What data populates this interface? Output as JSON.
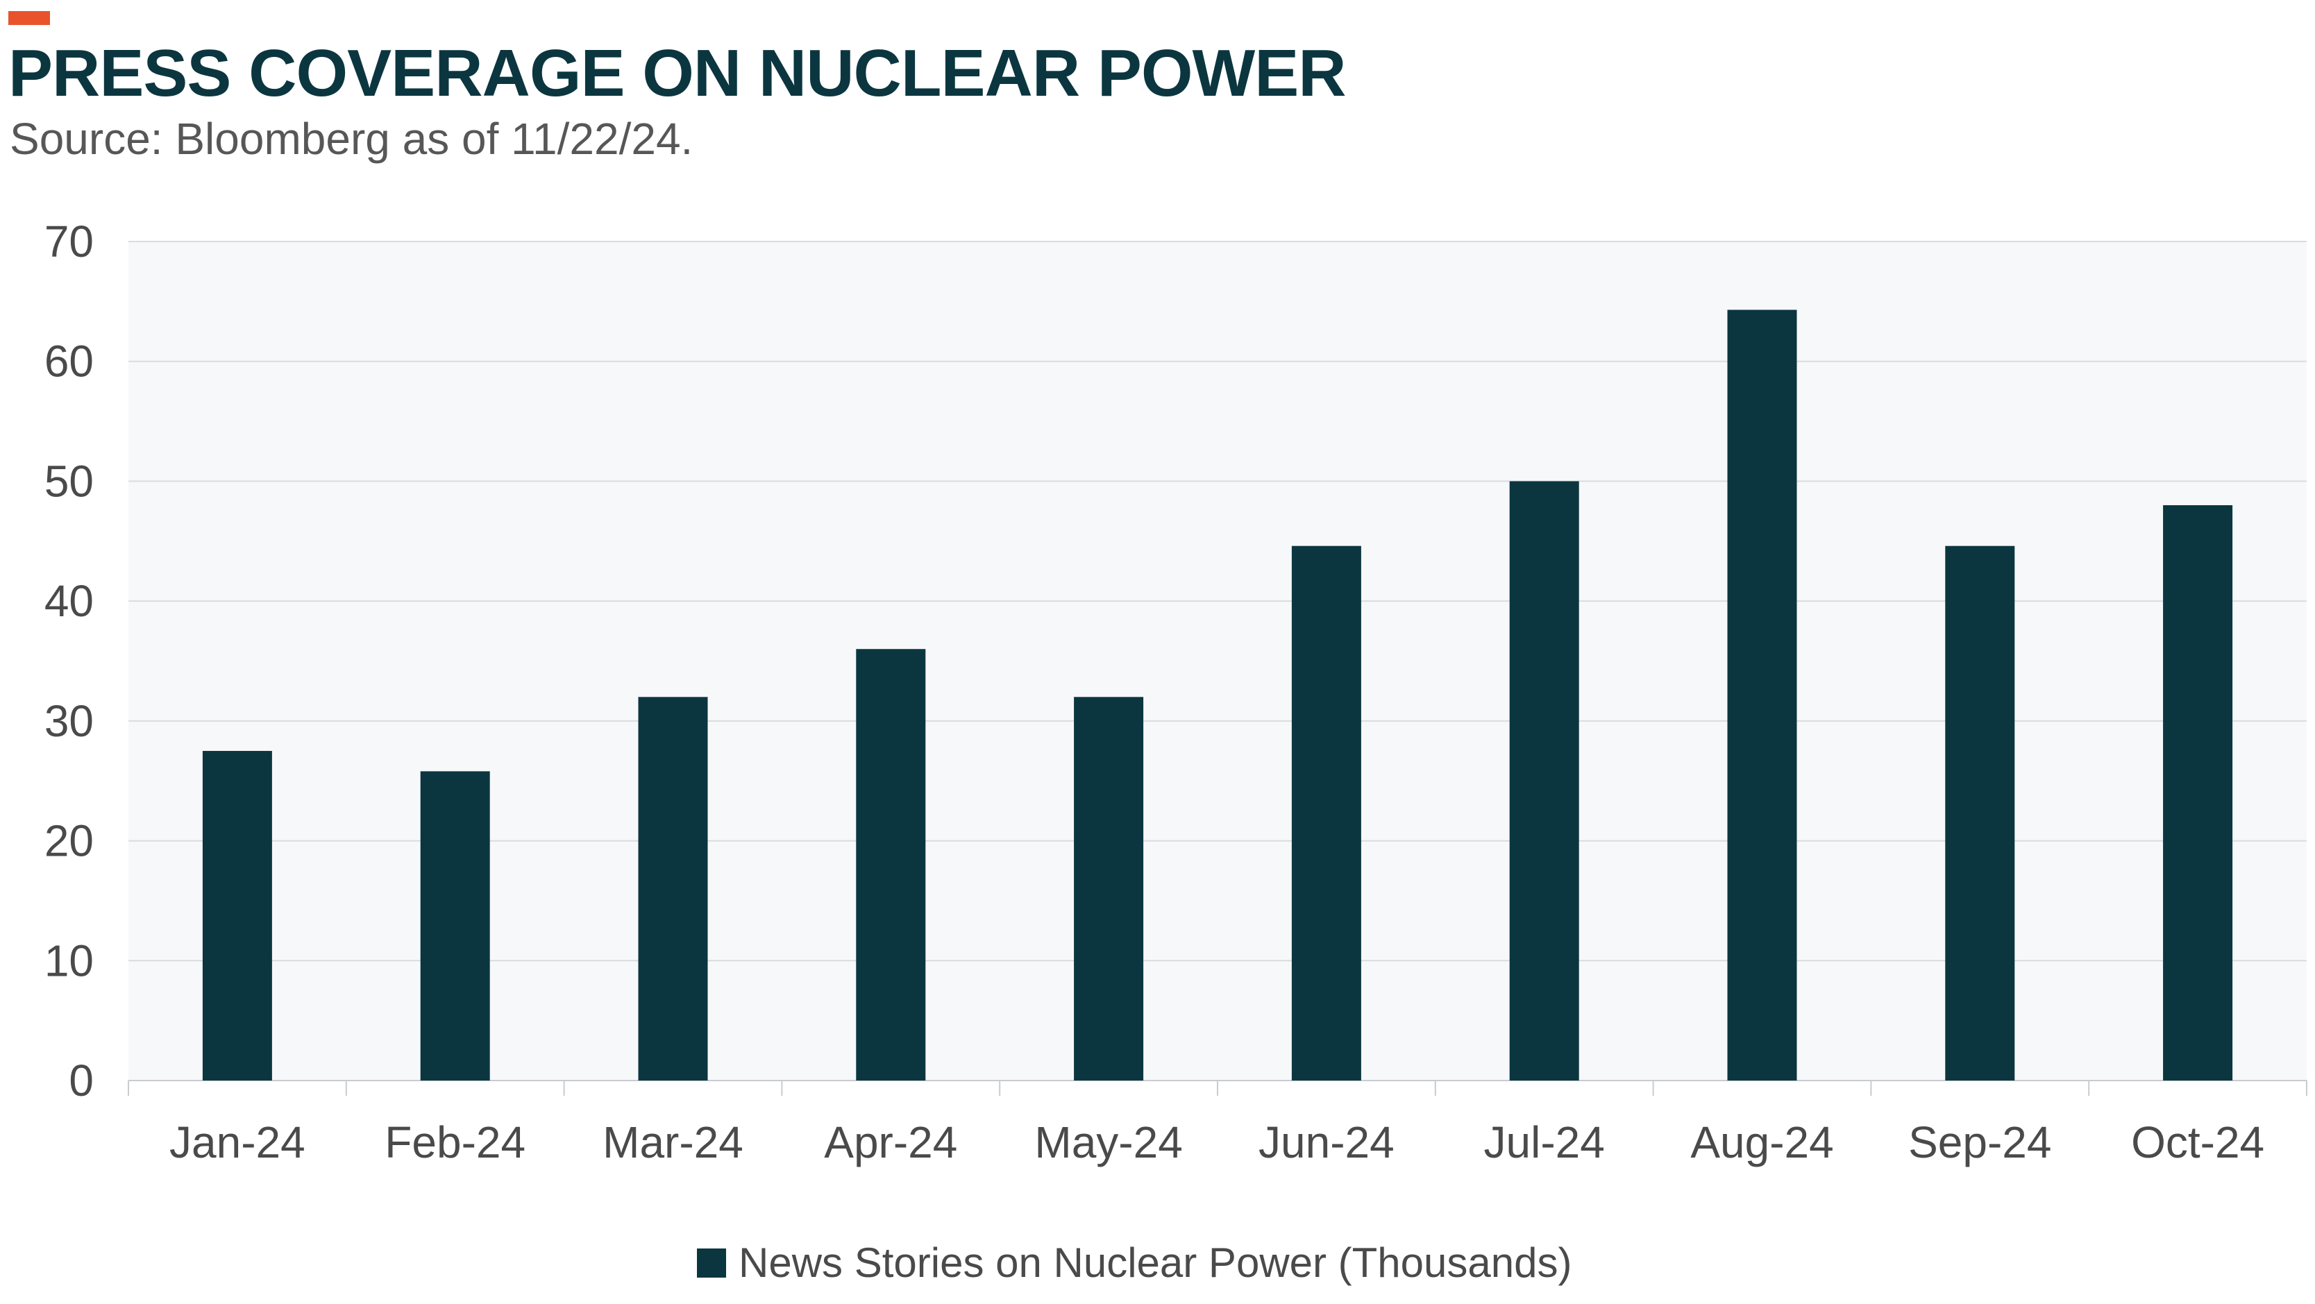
{
  "header": {
    "title": "PRESS COVERAGE ON NUCLEAR POWER",
    "subtitle": "Source: Bloomberg as of 11/22/24."
  },
  "colors": {
    "accent": "#e8532b",
    "bar": "#0b3640",
    "plot_background": "#f7f8fa",
    "gridline": "#d9dce0",
    "title": "#0b3640"
  },
  "chart_data": {
    "type": "bar",
    "title": "PRESS COVERAGE ON NUCLEAR POWER",
    "subtitle": "Source: Bloomberg as of 11/22/24.",
    "xlabel": "",
    "ylabel": "",
    "categories": [
      "Jan-24",
      "Feb-24",
      "Mar-24",
      "Apr-24",
      "May-24",
      "Jun-24",
      "Jul-24",
      "Aug-24",
      "Sep-24",
      "Oct-24"
    ],
    "series": [
      {
        "name": "News Stories on Nuclear Power (Thousands)",
        "values": [
          27.5,
          25.8,
          32,
          36,
          32,
          44.6,
          50,
          64.3,
          44.6,
          48
        ]
      }
    ],
    "ylim": [
      0,
      70
    ],
    "yticks": [
      0,
      10,
      20,
      30,
      40,
      50,
      60,
      70
    ],
    "grid": true,
    "legend": "bottom-center"
  }
}
